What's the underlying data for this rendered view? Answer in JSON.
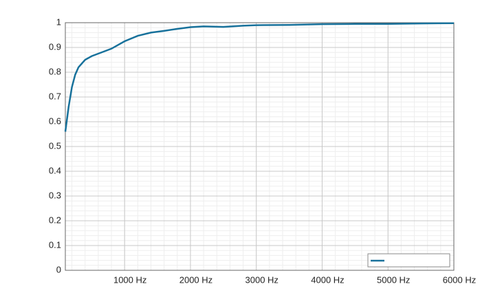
{
  "chart_data": {
    "type": "line",
    "x": [
      100,
      150,
      200,
      250,
      300,
      400,
      500,
      600,
      800,
      1000,
      1200,
      1400,
      1600,
      1800,
      2000,
      2200,
      2500,
      2800,
      3000,
      3500,
      4000,
      4500,
      5000,
      5500,
      6000
    ],
    "series": [
      {
        "color": "#17719b",
        "values": [
          0.56,
          0.66,
          0.74,
          0.79,
          0.82,
          0.85,
          0.865,
          0.875,
          0.895,
          0.925,
          0.947,
          0.96,
          0.967,
          0.975,
          0.982,
          0.985,
          0.983,
          0.988,
          0.99,
          0.991,
          0.994,
          0.995,
          0.995,
          0.997,
          0.998
        ]
      }
    ],
    "xlim": [
      100,
      6000
    ],
    "xticks": [
      {
        "value": 1000,
        "label": "1000 Hz"
      },
      {
        "value": 2000,
        "label": "2000 Hz"
      },
      {
        "value": 3000,
        "label": "3000 Hz"
      },
      {
        "value": 4000,
        "label": "4000 Hz"
      },
      {
        "value": 5000,
        "label": "5000 Hz"
      },
      {
        "value": 6000,
        "label": "6000 Hz"
      }
    ],
    "ylim": [
      0,
      1
    ],
    "yticks": [
      0,
      0.1,
      0.2,
      0.3,
      0.4,
      0.5,
      0.6,
      0.7,
      0.8,
      0.9,
      1
    ],
    "grid": true,
    "minor_grid": true,
    "legend": "lower right"
  }
}
